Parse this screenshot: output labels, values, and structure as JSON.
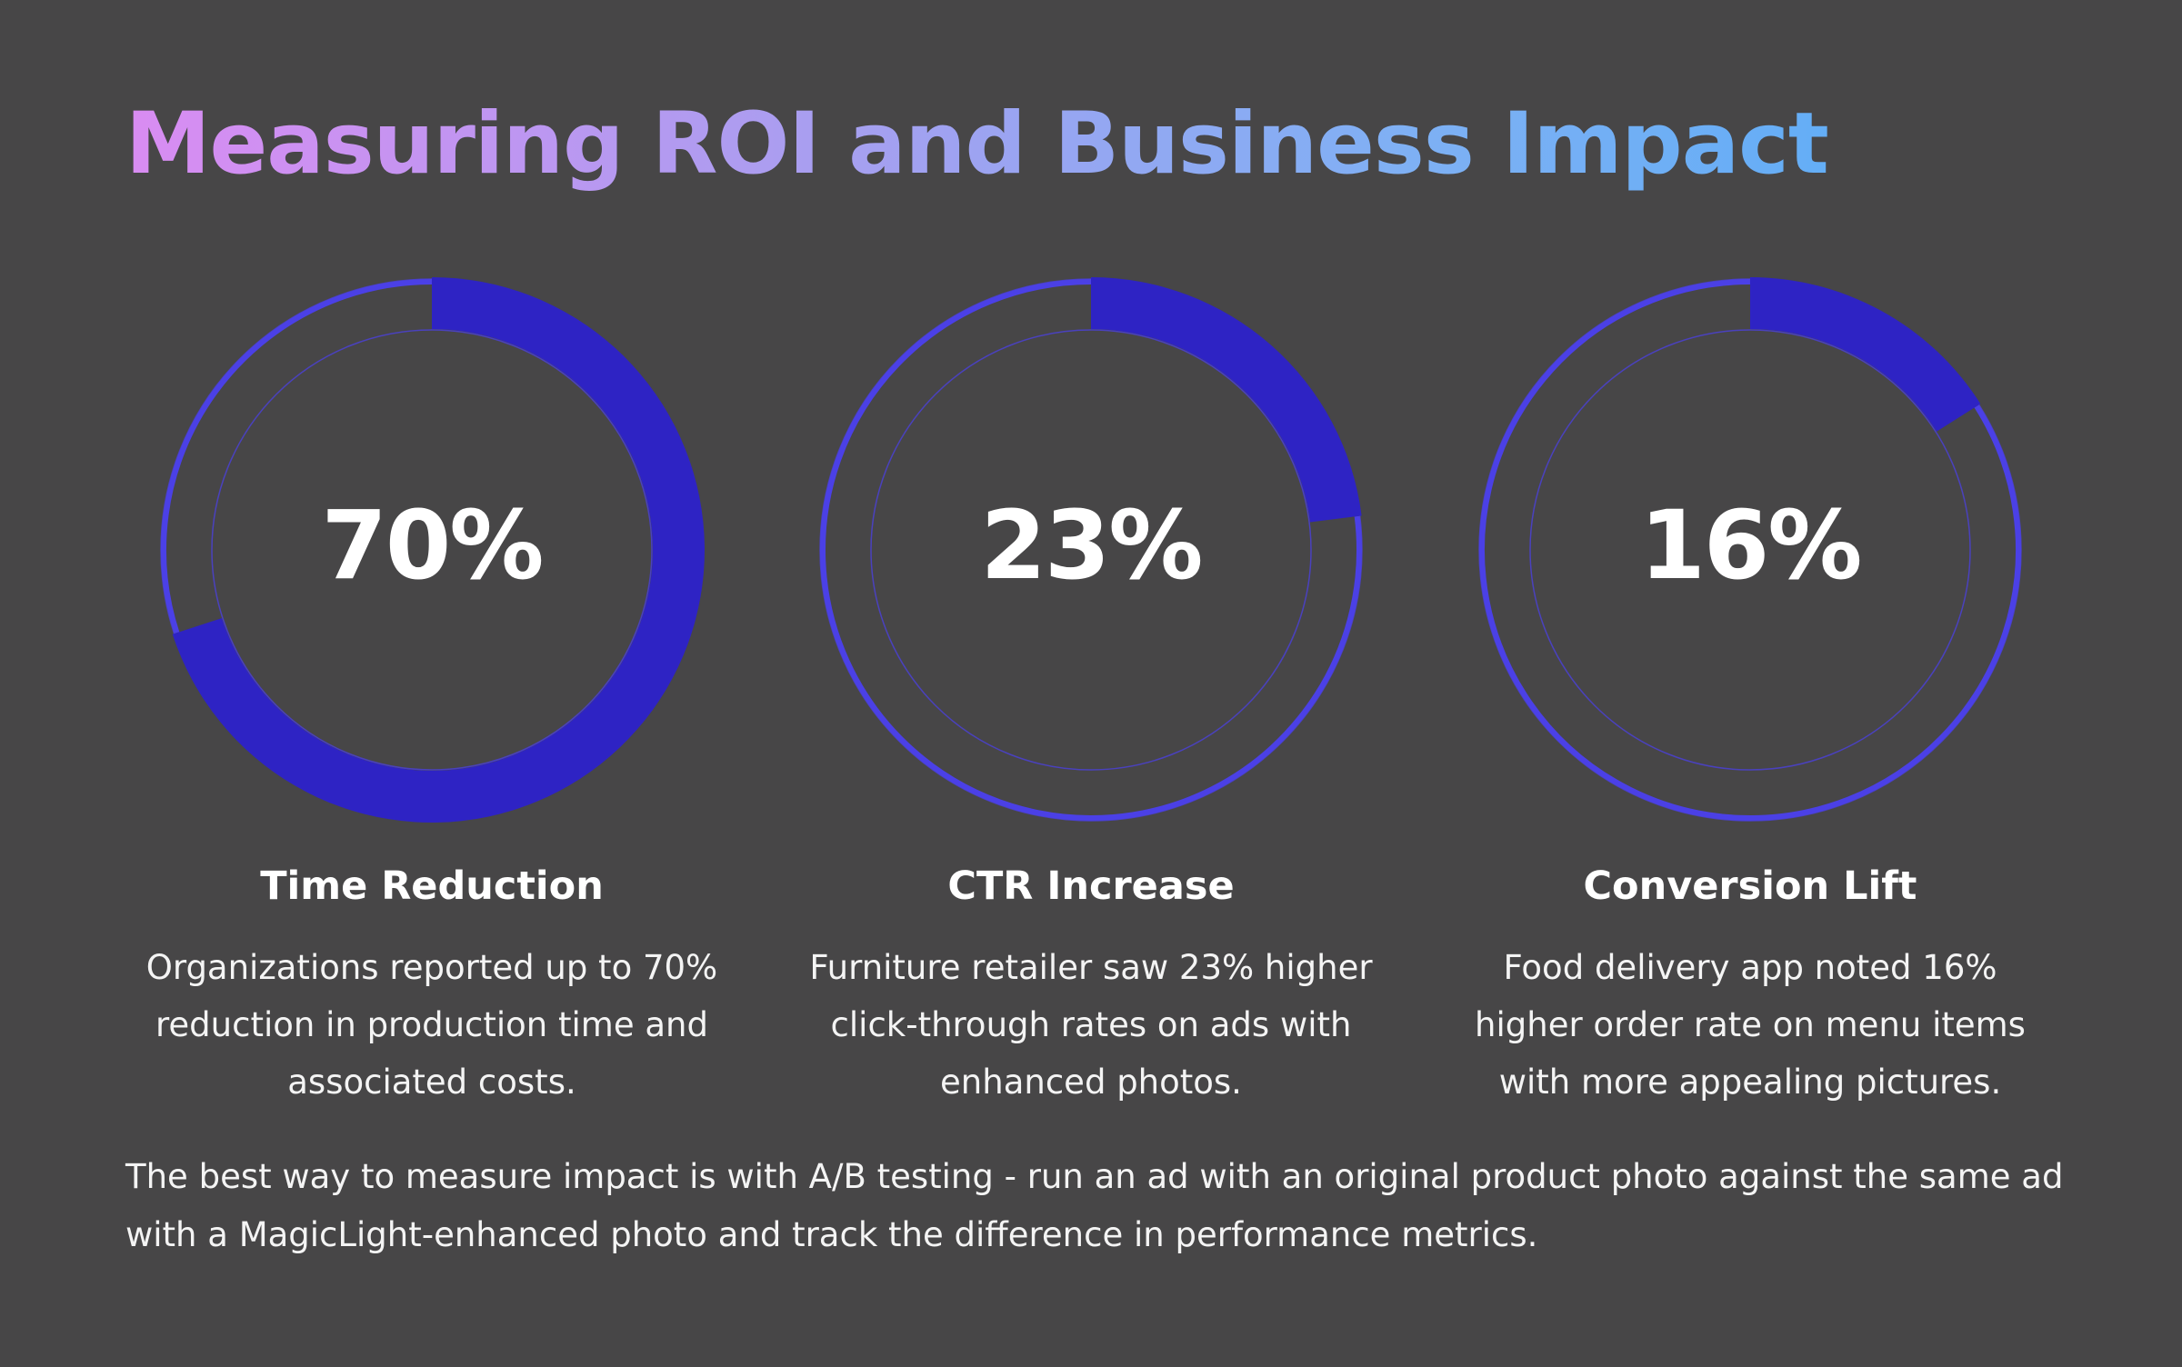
{
  "title": "Measuring ROI and Business Impact",
  "colors": {
    "background": "#474647",
    "ring_fill": "#2e23c4",
    "ring_track": "#4b40e6",
    "title_gradient_start": "#d98cf2",
    "title_gradient_end": "#64aef6"
  },
  "metrics": [
    {
      "value": "70%",
      "fraction": 0.7,
      "label": "Time Reduction",
      "description": "Organizations reported up to 70% reduction in production time and associated costs."
    },
    {
      "value": "23%",
      "fraction": 0.23,
      "label": "CTR Increase",
      "description": "Furniture retailer saw 23% higher click-through rates on ads with enhanced photos."
    },
    {
      "value": "16%",
      "fraction": 0.16,
      "label": "Conversion Lift",
      "description": "Food delivery app noted 16% higher order rate on menu items with more appealing pictures."
    }
  ],
  "footer_note": "The best way to measure impact is with A/B testing - run an ad with an original product photo against the same ad with a MagicLight-enhanced photo and track the difference in performance metrics."
}
